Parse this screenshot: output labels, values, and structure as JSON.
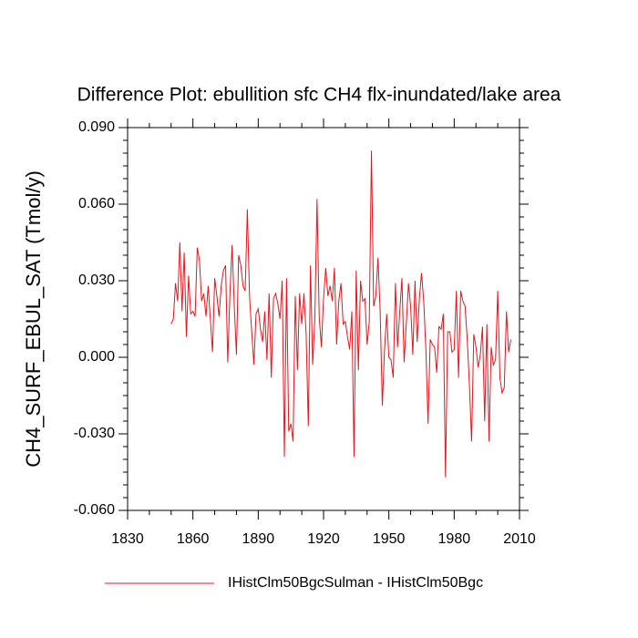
{
  "chart_data": {
    "type": "line",
    "title": "Difference Plot: ebullition sfc CH4 flx-inundated/lake area",
    "ylabel": "CH4_SURF_EBUL_SAT  (Tmol/y)",
    "x": [
      1850,
      1851,
      1852,
      1853,
      1854,
      1855,
      1856,
      1857,
      1858,
      1859,
      1860,
      1861,
      1862,
      1863,
      1864,
      1865,
      1866,
      1867,
      1868,
      1869,
      1870,
      1871,
      1872,
      1873,
      1874,
      1875,
      1876,
      1877,
      1878,
      1879,
      1880,
      1881,
      1882,
      1883,
      1884,
      1885,
      1886,
      1887,
      1888,
      1889,
      1890,
      1891,
      1892,
      1893,
      1894,
      1895,
      1896,
      1897,
      1898,
      1899,
      1900,
      1901,
      1902,
      1903,
      1904,
      1905,
      1906,
      1907,
      1908,
      1909,
      1910,
      1911,
      1912,
      1913,
      1914,
      1915,
      1916,
      1917,
      1918,
      1919,
      1920,
      1921,
      1922,
      1923,
      1924,
      1925,
      1926,
      1927,
      1928,
      1929,
      1930,
      1931,
      1932,
      1933,
      1934,
      1935,
      1936,
      1937,
      1938,
      1939,
      1940,
      1941,
      1942,
      1943,
      1944,
      1945,
      1946,
      1947,
      1948,
      1949,
      1950,
      1951,
      1952,
      1953,
      1954,
      1955,
      1956,
      1957,
      1958,
      1959,
      1960,
      1961,
      1962,
      1963,
      1964,
      1965,
      1966,
      1967,
      1968,
      1969,
      1970,
      1971,
      1972,
      1973,
      1974,
      1975,
      1976,
      1977,
      1978,
      1979,
      1980,
      1981,
      1982,
      1983,
      1984,
      1985,
      1986,
      1987,
      1988,
      1989,
      1990,
      1991,
      1992,
      1993,
      1994,
      1995,
      1996,
      1997,
      1998,
      1999,
      2000,
      2001,
      2002,
      2003,
      2004,
      2005,
      2006
    ],
    "series": [
      {
        "name": "IHistClm50BgcSulman - IHistClm50Bgc",
        "color": "#e8141c",
        "values": [
          0.013,
          0.015,
          0.029,
          0.022,
          0.045,
          0.018,
          0.041,
          0.008,
          0.032,
          0.017,
          0.018,
          0.016,
          0.043,
          0.038,
          0.022,
          0.025,
          0.016,
          0.028,
          0.015,
          0.002,
          0.031,
          0.024,
          0.016,
          0.028,
          0.034,
          0.036,
          -0.002,
          0.025,
          0.044,
          0.02,
          0.001,
          0.04,
          0.036,
          0.028,
          0.026,
          0.058,
          0.024,
          0.01,
          -0.003,
          0.017,
          0.019,
          0.011,
          0.006,
          0.018,
          -0.001,
          0.025,
          -0.008,
          0.023,
          0.025,
          0.021,
          0.015,
          0.03,
          -0.039,
          0.031,
          -0.029,
          -0.026,
          -0.033,
          0.024,
          -0.005,
          0.025,
          0.013,
          0.025,
          0.009,
          -0.027,
          0.036,
          -0.003,
          0.015,
          0.062,
          0.016,
          0.004,
          0.023,
          0.035,
          0.024,
          0.028,
          0.022,
          0.035,
          0.005,
          0.022,
          0.029,
          0.013,
          0.014,
          0.008,
          0.003,
          0.018,
          -0.039,
          0.034,
          -0.005,
          0.03,
          0.022,
          0.023,
          0.005,
          0.014,
          0.081,
          0.02,
          0.024,
          0.039,
          0.018,
          -0.019,
          0.003,
          0.017,
          0.0,
          -0.001,
          -0.008,
          0.029,
          0.004,
          0.018,
          0.031,
          -0.002,
          0.013,
          0.029,
          0.02,
          0.001,
          0.03,
          0.006,
          0.023,
          0.033,
          0.022,
          0.003,
          -0.026,
          0.007,
          0.005,
          0.004,
          -0.006,
          0.012,
          0.011,
          0.017,
          -0.047,
          0.01,
          0.01,
          0.002,
          0.003,
          0.026,
          -0.008,
          0.026,
          0.022,
          0.02,
          0.007,
          -0.011,
          -0.033,
          0.009,
          0.004,
          -0.004,
          0.001,
          0.012,
          -0.025,
          0.013,
          -0.033,
          0.004,
          -0.003,
          -0.001,
          0.026,
          -0.008,
          -0.014,
          -0.012,
          0.018,
          0.002,
          0.007
        ]
      }
    ],
    "xlim": [
      1830,
      2010
    ],
    "xticks": [
      1830,
      1860,
      1890,
      1920,
      1950,
      1980,
      2010
    ],
    "ylim": [
      -0.06,
      0.09
    ],
    "yticks": [
      {
        "value": -0.06,
        "label": "-0.060"
      },
      {
        "value": -0.03,
        "label": "-0.030"
      },
      {
        "value": 0,
        "label": "0.000"
      },
      {
        "value": 0.03,
        "label": "0.030"
      },
      {
        "value": 0.06,
        "label": "0.060"
      },
      {
        "value": 0.09,
        "label": "0.090"
      }
    ]
  }
}
